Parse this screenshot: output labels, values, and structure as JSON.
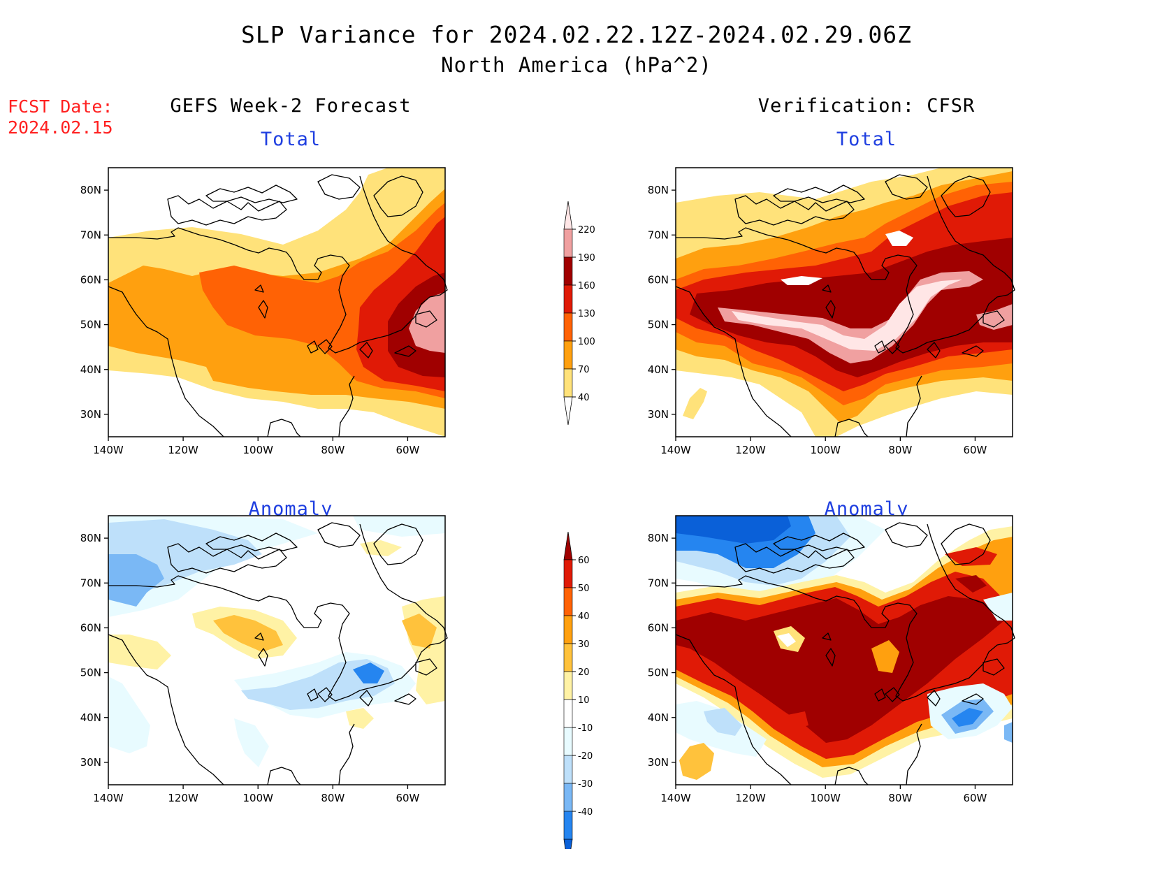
{
  "title": "SLP Variance for 2024.02.22.12Z-2024.02.29.06Z",
  "subtitle": "North America (hPa^2)",
  "fcst_date_label": "FCST Date:",
  "fcst_date": "2024.02.15",
  "columns": {
    "left": "GEFS Week-2 Forecast",
    "right": "Verification: CFSR"
  },
  "panels": {
    "top_left": "Total",
    "top_right": "Total",
    "bottom_left": "Anomaly",
    "bottom_right": "Anomaly"
  },
  "axes": {
    "x_ticks": [
      "140W",
      "120W",
      "100W",
      "80W",
      "60W"
    ],
    "y_ticks": [
      "80N",
      "70N",
      "60N",
      "50N",
      "40N",
      "30N"
    ]
  },
  "colorbars": {
    "total": {
      "levels": [
        "40",
        "70",
        "100",
        "130",
        "160",
        "190",
        "220"
      ],
      "colors": [
        "#ffffff",
        "#ffe27a",
        "#ffa00f",
        "#ff6205",
        "#e01a06",
        "#a00000",
        "#f0a0a0",
        "#ffe6e6"
      ]
    },
    "anomaly": {
      "levels": [
        "-40",
        "-30",
        "-20",
        "-10",
        "10",
        "20",
        "30",
        "40",
        "50",
        "60"
      ],
      "colors": [
        "#0a60d8",
        "#2585f0",
        "#7ab8f5",
        "#bee0fa",
        "#e8fbff",
        "#ffffff",
        "#fff2a5",
        "#ffc23c",
        "#ffa00f",
        "#ff6205",
        "#e01a06",
        "#a00000"
      ]
    }
  }
}
